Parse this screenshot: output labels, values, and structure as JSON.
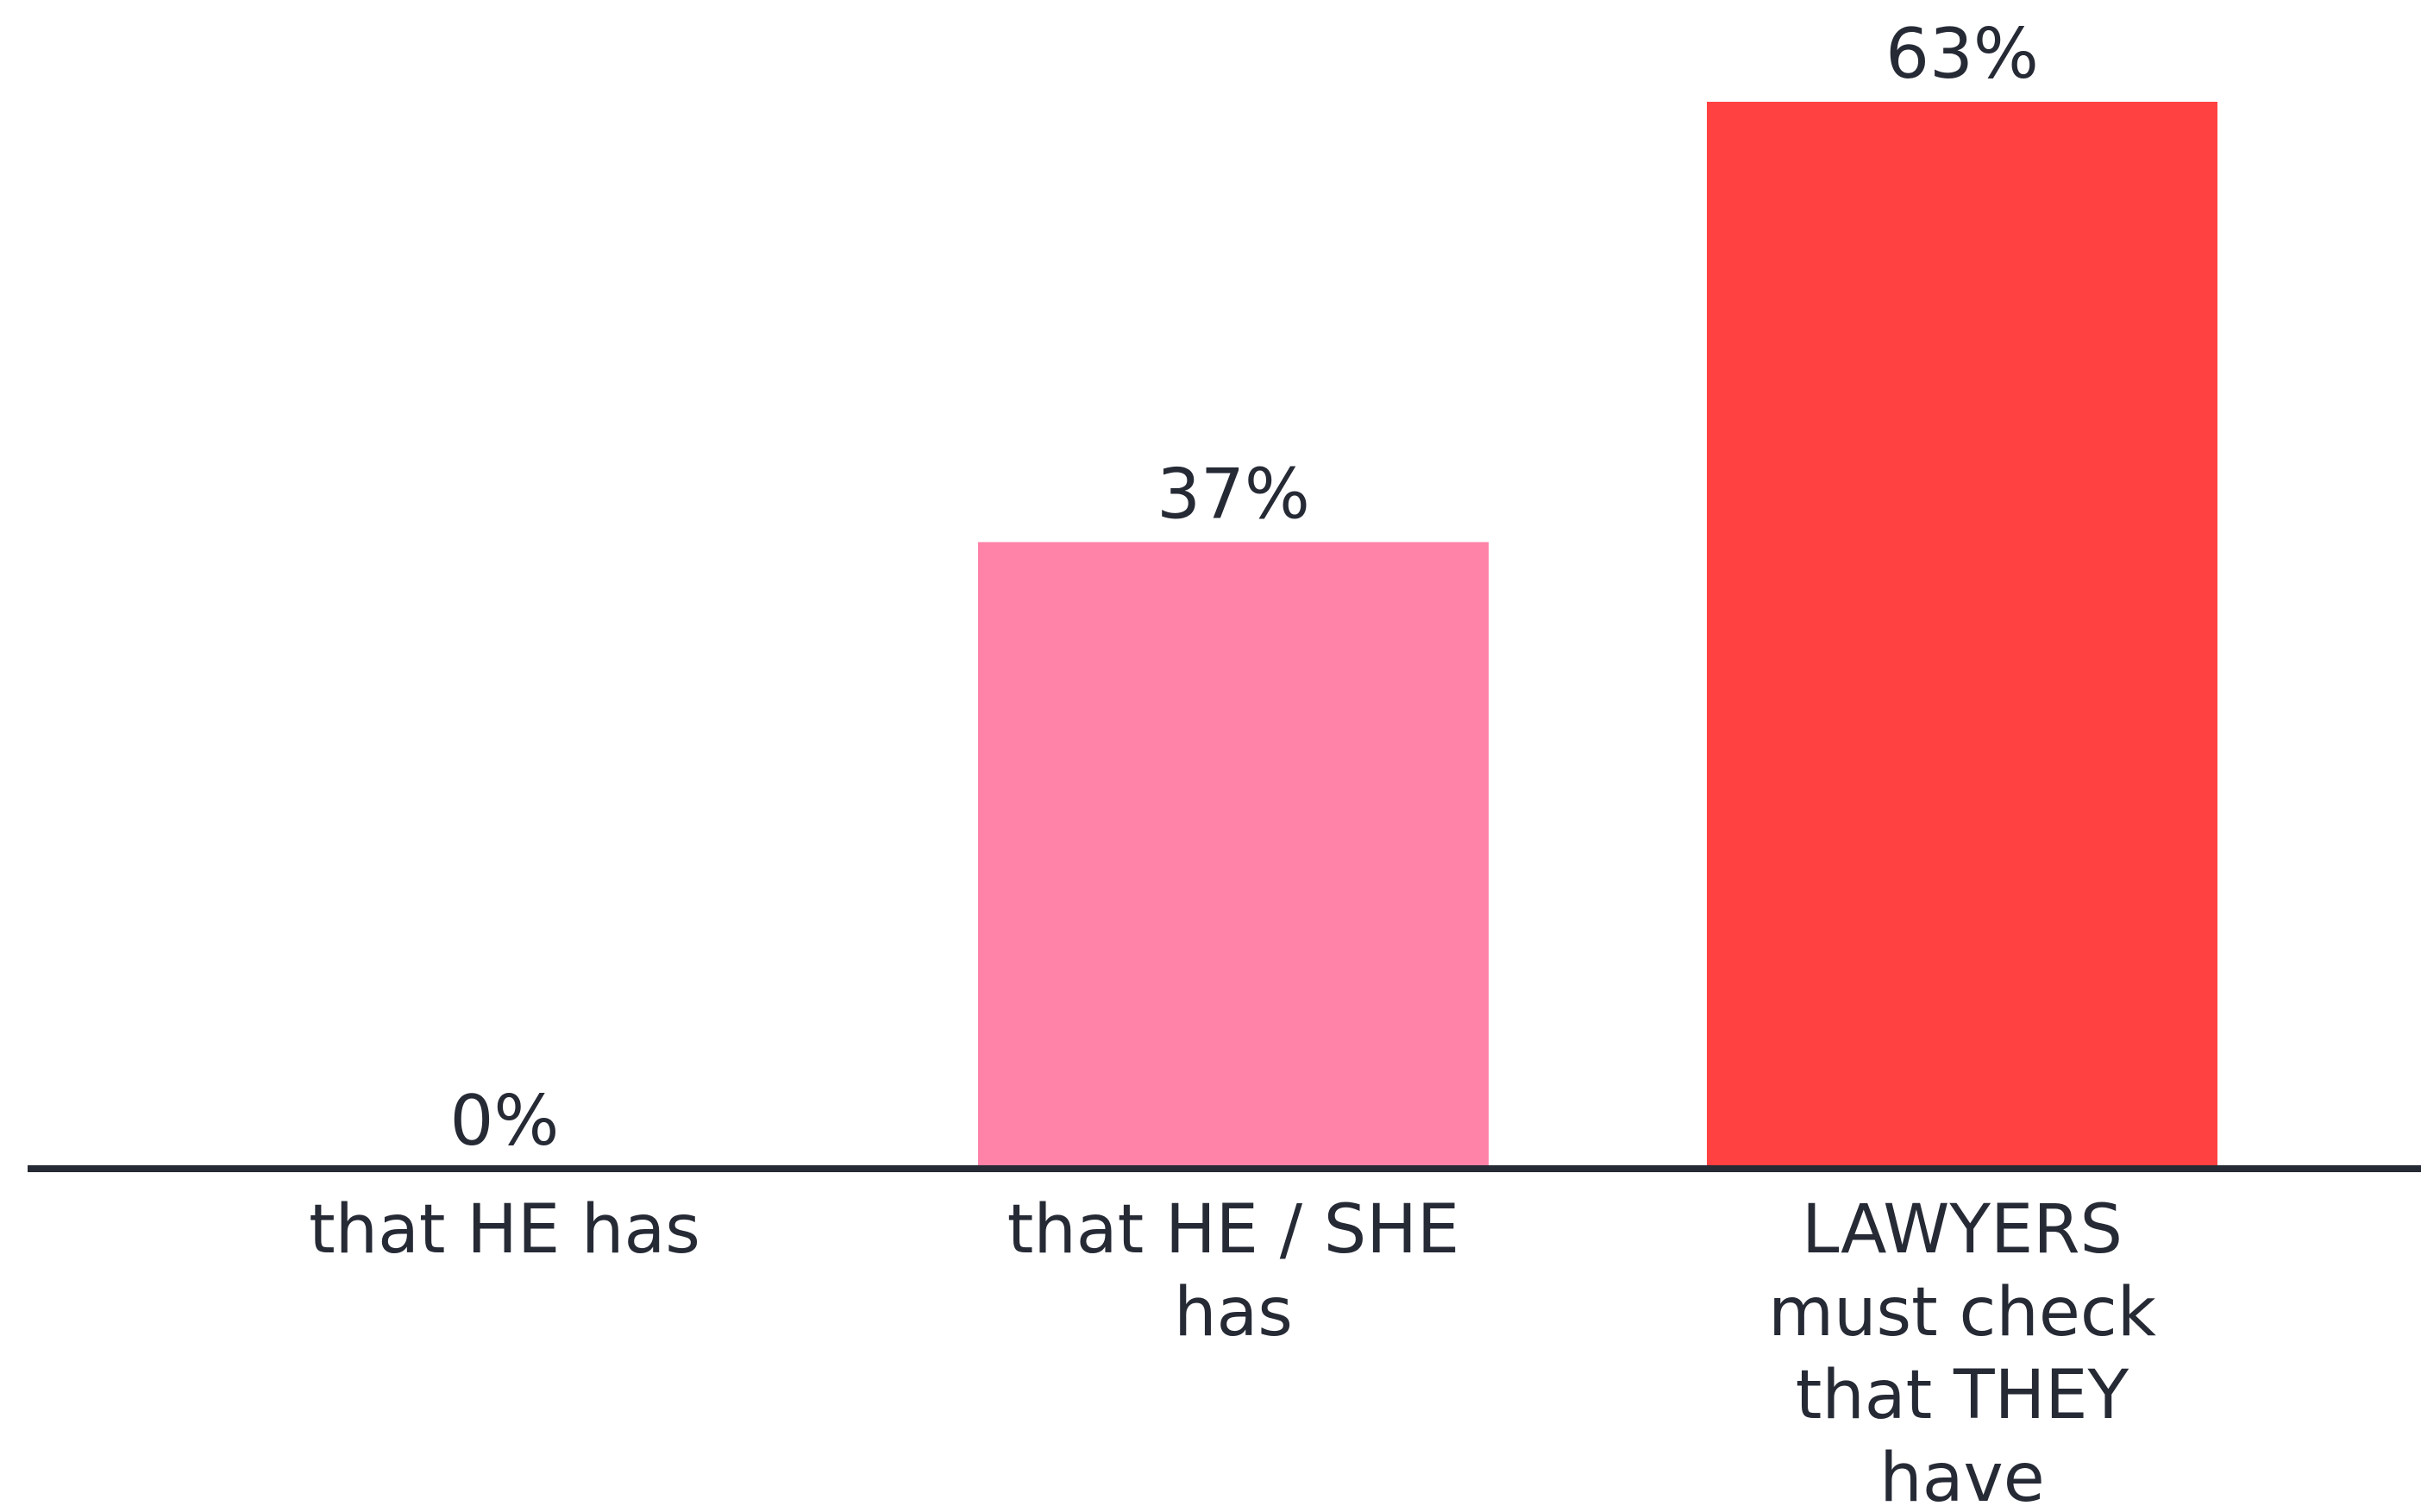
{
  "chart_data": {
    "type": "bar",
    "categories": [
      [
        "that HE has"
      ],
      [
        "that HE / SHE",
        "has"
      ],
      [
        "LAWYERS",
        "must check",
        "that THEY",
        "have"
      ]
    ],
    "values": [
      0,
      37,
      63
    ],
    "value_labels": [
      "0%",
      "37%",
      "63%"
    ],
    "colors": [
      "#ffffff",
      "#ff82a9",
      "#ff4141"
    ],
    "title": "",
    "xlabel": "",
    "ylabel": "",
    "ylim": [
      0,
      63
    ],
    "grid": false,
    "legend": "none"
  }
}
